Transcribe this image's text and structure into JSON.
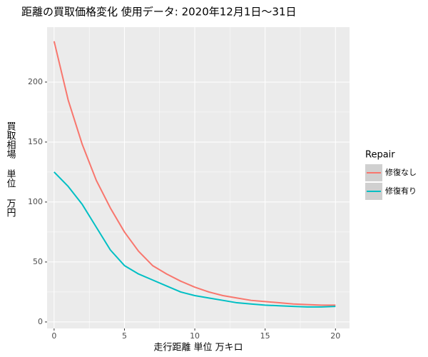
{
  "chart_data": {
    "type": "line",
    "title": "距離の買取価格変化 使用データ: 2020年12月1日～31日",
    "x_label": "走行距離 単位 万キロ",
    "y_label": "買取相場 単位 万円",
    "legend_title": "Repair",
    "legend_position": "right",
    "grid": true,
    "x": [
      0,
      1,
      2,
      3,
      4,
      5,
      6,
      7,
      8,
      9,
      10,
      11,
      12,
      13,
      14,
      15,
      16,
      17,
      18,
      19,
      20
    ],
    "series": [
      {
        "name": "修復なし",
        "color": "#F8766D",
        "values": [
          234,
          185,
          148,
          118,
          95,
          75,
          59,
          47,
          40,
          34,
          29,
          25,
          22,
          20,
          18,
          17,
          16,
          15,
          14.5,
          14,
          14
        ]
      },
      {
        "name": "修復有り",
        "color": "#00BFC4",
        "values": [
          125,
          113,
          98,
          79,
          60,
          47,
          40,
          35,
          30,
          25,
          22,
          20,
          18,
          16,
          15,
          14,
          13.5,
          13,
          12.5,
          12.5,
          13
        ]
      }
    ],
    "xlim": [
      -0.5,
      21
    ],
    "ylim": [
      -5.4,
      245.8
    ],
    "xticks": [
      0,
      5,
      10,
      15,
      20
    ],
    "yticks": [
      0,
      50,
      100,
      150,
      200
    ]
  }
}
